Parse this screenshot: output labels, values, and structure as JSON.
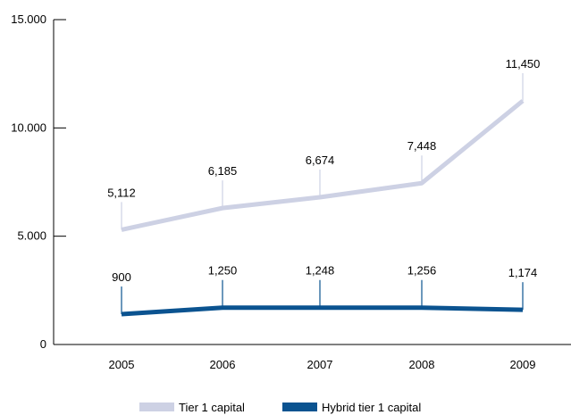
{
  "chart_data": {
    "type": "line",
    "categories": [
      "2005",
      "2006",
      "2007",
      "2008",
      "2009"
    ],
    "series": [
      {
        "name": "Tier 1 capital",
        "values": [
          5112,
          6185,
          6674,
          7448,
          11450
        ],
        "plotted": [
          5300,
          6300,
          6800,
          7450,
          11250
        ],
        "labels": [
          "5,112",
          "6,185",
          "6,674",
          "7,448",
          "11,450"
        ],
        "color": "#cdd1e4"
      },
      {
        "name": "Hybrid tier 1 capital",
        "values": [
          900,
          1250,
          1248,
          1256,
          1174
        ],
        "plotted": [
          1400,
          1700,
          1700,
          1700,
          1600
        ],
        "labels": [
          "900",
          "1,250",
          "1,248",
          "1,256",
          "1,174"
        ],
        "color": "#0b5390"
      }
    ],
    "y_ticks": [
      0,
      5000,
      10000,
      15000
    ],
    "y_tick_labels": [
      "0",
      "5.000",
      "10.000",
      "15.000"
    ],
    "ylim": [
      0,
      15000
    ],
    "title": "",
    "xlabel": "",
    "ylabel": "",
    "grid": false,
    "legend_position": "bottom"
  }
}
